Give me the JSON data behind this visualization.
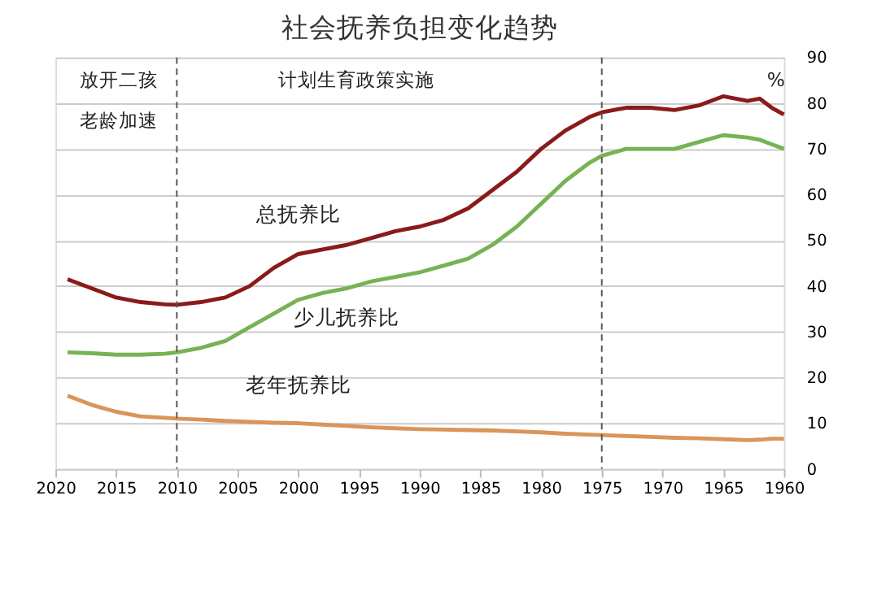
{
  "chart_data": {
    "type": "line",
    "title": "社会抚养负担变化趋势",
    "ylabel": "%",
    "x": [
      2019,
      2017,
      2015,
      2013,
      2011,
      2010,
      2008,
      2006,
      2004,
      2002,
      2000,
      1998,
      1996,
      1994,
      1992,
      1990,
      1988,
      1986,
      1984,
      1982,
      1980,
      1978,
      1976,
      1975,
      1973,
      1971,
      1969,
      1967,
      1965,
      1963,
      1962,
      1961,
      1960
    ],
    "series": [
      {
        "name": "总抚养比",
        "color": "#8b1a1a",
        "values": [
          41.5,
          39.5,
          37.5,
          36.5,
          36,
          35.9,
          36.5,
          37.5,
          40,
          44,
          47,
          48,
          49,
          50.5,
          52,
          53,
          54.5,
          57,
          61,
          65,
          70,
          74,
          77,
          78,
          79,
          79,
          78.5,
          79.5,
          81.5,
          80.5,
          81,
          79,
          77.5
        ]
      },
      {
        "name": "少儿抚养比",
        "color": "#77b255",
        "values": [
          25.5,
          25.3,
          25,
          25,
          25.2,
          25.5,
          26.5,
          28,
          31,
          34,
          37,
          38.5,
          39.5,
          41,
          42,
          43,
          44.5,
          46,
          49,
          53,
          58,
          63,
          67,
          68.5,
          70,
          70,
          70,
          71.5,
          73,
          72.5,
          72,
          71,
          70
        ]
      },
      {
        "name": "老年抚养比",
        "color": "#d9955a",
        "values": [
          16,
          14,
          12.5,
          11.5,
          11.2,
          11,
          10.8,
          10.5,
          10.3,
          10.1,
          10,
          9.7,
          9.4,
          9.1,
          8.9,
          8.7,
          8.6,
          8.5,
          8.4,
          8.2,
          8,
          7.7,
          7.5,
          7.4,
          7.2,
          7,
          6.8,
          6.7,
          6.5,
          6.3,
          6.4,
          6.6,
          6.6
        ]
      }
    ],
    "xlim": [
      2020,
      1960
    ],
    "xticks": [
      2020,
      2015,
      2010,
      2005,
      2000,
      1995,
      1990,
      1985,
      1980,
      1975,
      1970,
      1965,
      1960
    ],
    "ylim": [
      0,
      90
    ],
    "yticks": [
      0,
      10,
      20,
      30,
      40,
      50,
      60,
      70,
      80,
      90
    ],
    "ref_lines": [
      {
        "axis": "x",
        "value": 2010,
        "color": "#555555",
        "line_style": "dashed"
      },
      {
        "axis": "x",
        "value": 1975,
        "color": "#555555",
        "line_style": "dashed"
      }
    ],
    "annotations": [
      "放开二孩",
      "老龄加速",
      "计划生育政策实施"
    ],
    "grid": "y",
    "line_style": "solid"
  }
}
